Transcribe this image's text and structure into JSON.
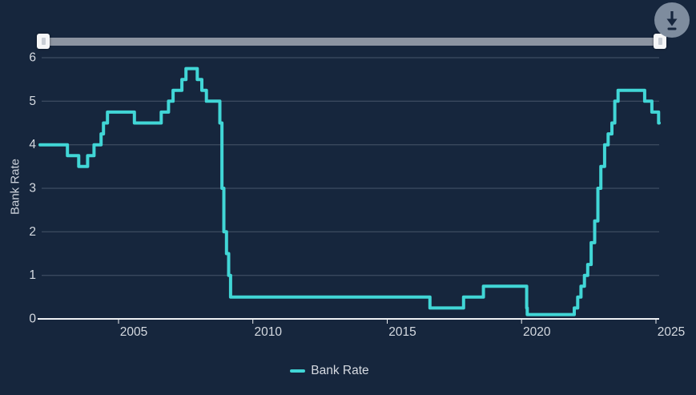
{
  "toolbar": {
    "download_label": "Download chart"
  },
  "legend": {
    "label": "Bank Rate"
  },
  "colors": {
    "background": "#16263D",
    "series_teal": "#41D6D6",
    "gridline": "rgba(163,175,194,0.34)",
    "axis_line": "#EDF0F3",
    "tick_text": "#D5DAE1",
    "slider_track": "#8C94A1",
    "slider_handle": "#F5F6F7",
    "download_button": "#7E8C9E"
  },
  "chart_data": {
    "type": "line",
    "step": "after",
    "title": "",
    "xlabel": "",
    "ylabel": "Bank Rate",
    "xlim": [
      2002.08,
      2025.12
    ],
    "ylim": [
      0,
      6
    ],
    "x_ticks": [
      2005,
      2010,
      2015,
      2020,
      2025
    ],
    "y_ticks": [
      0,
      1,
      2,
      3,
      4,
      5,
      6
    ],
    "grid": "horizontal",
    "legend_position": "bottom",
    "series": [
      {
        "name": "Bank Rate",
        "color": "#41D6D6",
        "points": [
          [
            2002.08,
            4.0
          ],
          [
            2003.1,
            3.75
          ],
          [
            2003.52,
            3.5
          ],
          [
            2003.85,
            3.75
          ],
          [
            2004.09,
            4.0
          ],
          [
            2004.35,
            4.25
          ],
          [
            2004.44,
            4.5
          ],
          [
            2004.59,
            4.75
          ],
          [
            2005.59,
            4.5
          ],
          [
            2006.59,
            4.75
          ],
          [
            2006.86,
            5.0
          ],
          [
            2007.03,
            5.25
          ],
          [
            2007.36,
            5.5
          ],
          [
            2007.51,
            5.75
          ],
          [
            2007.93,
            5.5
          ],
          [
            2008.1,
            5.25
          ],
          [
            2008.27,
            5.0
          ],
          [
            2008.77,
            4.5
          ],
          [
            2008.85,
            3.0
          ],
          [
            2008.92,
            2.0
          ],
          [
            2009.02,
            1.5
          ],
          [
            2009.1,
            1.0
          ],
          [
            2009.17,
            0.5
          ],
          [
            2016.59,
            0.25
          ],
          [
            2017.84,
            0.5
          ],
          [
            2018.58,
            0.75
          ],
          [
            2020.19,
            0.25
          ],
          [
            2020.21,
            0.1
          ],
          [
            2021.96,
            0.25
          ],
          [
            2022.09,
            0.5
          ],
          [
            2022.21,
            0.75
          ],
          [
            2022.34,
            1.0
          ],
          [
            2022.46,
            1.25
          ],
          [
            2022.59,
            1.75
          ],
          [
            2022.72,
            2.25
          ],
          [
            2022.84,
            3.0
          ],
          [
            2022.95,
            3.5
          ],
          [
            2023.09,
            4.0
          ],
          [
            2023.22,
            4.25
          ],
          [
            2023.36,
            4.5
          ],
          [
            2023.47,
            5.0
          ],
          [
            2023.59,
            5.25
          ],
          [
            2024.58,
            5.0
          ],
          [
            2024.85,
            4.75
          ],
          [
            2025.1,
            4.5
          ]
        ]
      }
    ]
  }
}
